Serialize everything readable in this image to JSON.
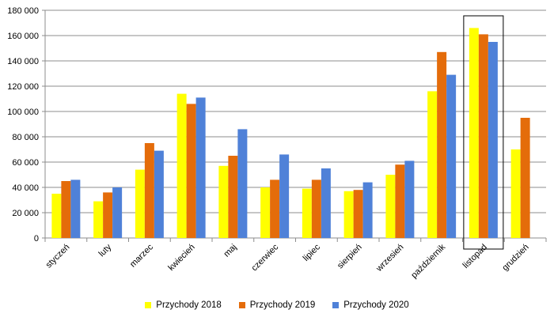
{
  "chart_data": {
    "type": "bar",
    "categories": [
      "styczeń",
      "luty",
      "marzec",
      "kwiecień",
      "maj",
      "czerwiec",
      "lipiec",
      "sierpień",
      "wrzesień",
      "październik",
      "listopad",
      "grudzień"
    ],
    "series": [
      {
        "name": "Przychody 2018",
        "color": "#ffff00",
        "values": [
          35000,
          29000,
          54000,
          114000,
          57000,
          40000,
          39000,
          37000,
          50000,
          116000,
          166000,
          70000
        ]
      },
      {
        "name": "Przychody 2019",
        "color": "#e46c0a",
        "values": [
          45000,
          36000,
          75000,
          106000,
          65000,
          46000,
          46000,
          38000,
          58000,
          147000,
          161000,
          95000
        ]
      },
      {
        "name": "Przychody 2020",
        "color": "#4f81d8",
        "values": [
          46000,
          40000,
          69000,
          111000,
          86000,
          66000,
          55000,
          44000,
          61000,
          129000,
          155000,
          null
        ]
      }
    ],
    "ylim": [
      0,
      180000
    ],
    "yticks": [
      "0",
      "20 000",
      "40 000",
      "60 000",
      "80 000",
      "100 000",
      "120 000",
      "140 000",
      "160 000",
      "180 000"
    ],
    "title": "",
    "xlabel": "",
    "ylabel": "",
    "grid": true,
    "legend_position": "bottom",
    "highlighted_category": "listopad"
  }
}
